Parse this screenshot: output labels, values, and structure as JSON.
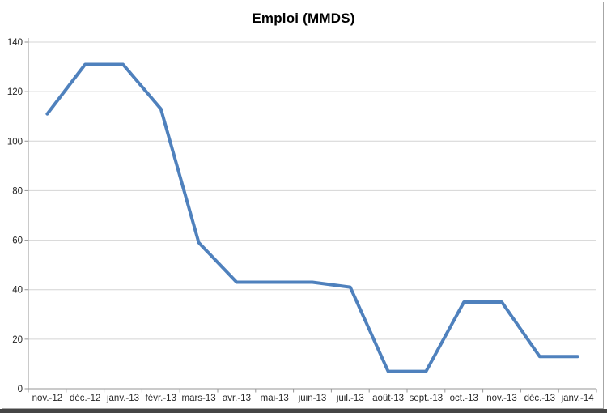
{
  "chart": {
    "title_label": "Emploi (MMDS)"
  },
  "chart_data": {
    "type": "line",
    "title": "Emploi (MMDS)",
    "categories": [
      "nov.-12",
      "déc.-12",
      "janv.-13",
      "févr.-13",
      "mars-13",
      "avr.-13",
      "mai-13",
      "juin-13",
      "juil.-13",
      "août-13",
      "sept.-13",
      "oct.-13",
      "nov.-13",
      "déc.-13",
      "janv.-14"
    ],
    "values": [
      111,
      131,
      131,
      113,
      59,
      43,
      43,
      43,
      41,
      7,
      7,
      35,
      35,
      13,
      13
    ],
    "xlabel": "",
    "ylabel": "",
    "ylim": [
      0,
      140
    ],
    "ytick_step": 20,
    "yticks": [
      "0",
      "20",
      "40",
      "60",
      "80",
      "100",
      "120",
      "140"
    ],
    "grid": "horizontal-only",
    "legend": "none",
    "colors": {
      "line": "#4F81BD",
      "gridline": "#D4D4D4",
      "axis": "#969696",
      "tick_label": "#262626",
      "title": "#000000",
      "frame_border": "#A6A6A6",
      "bottom_bar": "#454545"
    }
  }
}
